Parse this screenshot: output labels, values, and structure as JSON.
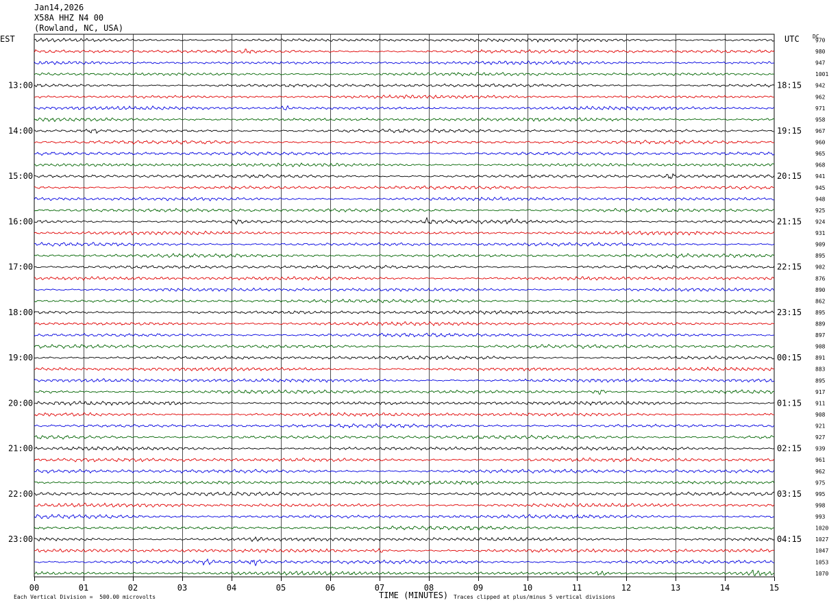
{
  "header": {
    "date": "Jan14,2026",
    "station": "X58A HHZ N4 00",
    "location": "(Rowland, NC, USA)"
  },
  "labels": {
    "left_tz": "EST",
    "right_tz": "UTC",
    "dc": "DC",
    "xlabel": "TIME (MINUTES)",
    "scale_note": "Each Vertical Division =  500.00 microvolts",
    "clip_note": "Traces clipped at plus/minus 5 vertical divisions"
  },
  "chart_data": {
    "type": "line",
    "title": "",
    "xlabel": "TIME (MINUTES)",
    "x_ticks": [
      "00",
      "01",
      "02",
      "03",
      "04",
      "05",
      "06",
      "07",
      "08",
      "09",
      "10",
      "11",
      "12",
      "13",
      "14",
      "15"
    ],
    "xlim": [
      0,
      15
    ],
    "trace_colors": [
      "#000000",
      "#e00000",
      "#0000e0",
      "#006400"
    ],
    "left_hour_labels": [
      "13:00",
      "14:00",
      "15:00",
      "16:00",
      "17:00",
      "18:00",
      "19:00",
      "20:00",
      "21:00",
      "22:00",
      "23:00"
    ],
    "right_hour_labels": [
      "18:15",
      "19:15",
      "20:15",
      "21:15",
      "22:15",
      "23:15",
      "00:15",
      "01:15",
      "02:15",
      "03:15",
      "04:15"
    ],
    "dc_values": [
      970,
      980,
      947,
      1001,
      942,
      962,
      971,
      958,
      967,
      960,
      965,
      968,
      941,
      945,
      948,
      925,
      924,
      931,
      909,
      895,
      902,
      876,
      890,
      862,
      895,
      889,
      897,
      908,
      891,
      883,
      895,
      917,
      911,
      908,
      921,
      927,
      939,
      961,
      962,
      975,
      995,
      998,
      993,
      1020,
      1027,
      1047,
      1053,
      1070
    ],
    "events": [
      {
        "trace": 1,
        "minute": 4.3,
        "amp": 1.4
      },
      {
        "trace": 6,
        "minute": 5.1,
        "amp": 1.5
      },
      {
        "trace": 8,
        "minute": 1.2,
        "amp": 1.4
      },
      {
        "trace": 12,
        "minute": 12.9,
        "amp": 1.8
      },
      {
        "trace": 16,
        "minute": 8.0,
        "amp": 1.9
      },
      {
        "trace": 16,
        "minute": 4.1,
        "amp": 1.3
      },
      {
        "trace": 16,
        "minute": 9.7,
        "amp": 1.4
      },
      {
        "trace": 31,
        "minute": 11.45,
        "amp": 2.0
      },
      {
        "trace": 32,
        "minute": 2.8,
        "amp": 1.3
      },
      {
        "trace": 44,
        "minute": 4.5,
        "amp": 1.3
      },
      {
        "trace": 46,
        "minute": 3.5,
        "amp": 1.6
      },
      {
        "trace": 46,
        "minute": 4.5,
        "amp": 1.7
      },
      {
        "trace": 45,
        "minute": 7.0,
        "amp": 1.4
      },
      {
        "trace": 47,
        "minute": 11.5,
        "amp": 1.4
      },
      {
        "trace": 47,
        "minute": 14.6,
        "amp": 1.5
      }
    ]
  }
}
